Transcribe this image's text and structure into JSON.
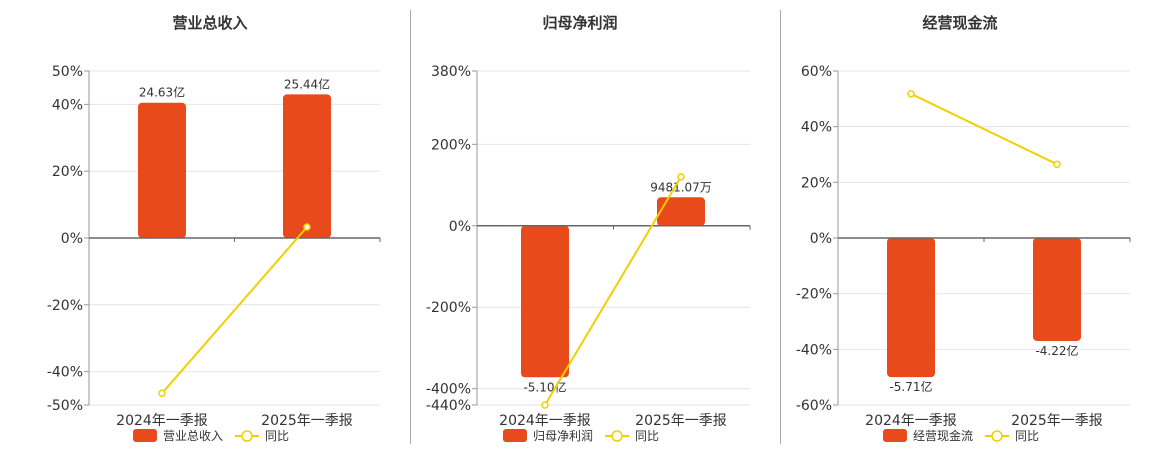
{
  "legend_labels": {
    "yoy": "同比"
  },
  "colors": {
    "bar": "#e84a1c",
    "line": "#f0d000",
    "marker_fill": "#ffffff"
  },
  "chart_data": [
    {
      "type": "bar",
      "title": "营业总收入",
      "categories": [
        "2024年一季报",
        "2025年一季报"
      ],
      "series": [
        {
          "name": "营业总收入",
          "type": "bar",
          "values": [
            40.5,
            43.0
          ],
          "labels": [
            "24.63亿",
            "25.44亿"
          ]
        },
        {
          "name": "同比",
          "type": "line",
          "values": [
            -46.5,
            3.3
          ]
        }
      ],
      "yticks": [
        50,
        40,
        20,
        0,
        -20,
        -40,
        -50
      ],
      "ylim": [
        -50,
        50
      ],
      "yunit": "%",
      "grid": true,
      "legend": "bottom"
    },
    {
      "type": "bar",
      "title": "归母净利润",
      "categories": [
        "2024年一季报",
        "2025年一季报"
      ],
      "series": [
        {
          "name": "归母净利润",
          "type": "bar",
          "values": [
            -372,
            70
          ],
          "labels": [
            "-5.10亿",
            "9481.07万"
          ]
        },
        {
          "name": "同比",
          "type": "line",
          "values": [
            -440,
            120
          ]
        }
      ],
      "yticks": [
        380,
        200,
        0,
        -200,
        -400,
        -440
      ],
      "ylim": [
        -440,
        380
      ],
      "yunit": "%",
      "grid": true,
      "legend": "bottom"
    },
    {
      "type": "bar",
      "title": "经营现金流",
      "categories": [
        "2024年一季报",
        "2025年一季报"
      ],
      "series": [
        {
          "name": "经营现金流",
          "type": "bar",
          "values": [
            -50,
            -37
          ],
          "labels": [
            "-5.71亿",
            "-4.22亿"
          ]
        },
        {
          "name": "同比",
          "type": "line",
          "values": [
            51.8,
            26.5
          ]
        }
      ],
      "yticks": [
        60,
        40,
        20,
        0,
        -20,
        -40,
        -60
      ],
      "ylim": [
        -60,
        60
      ],
      "yunit": "%",
      "grid": true,
      "legend": "bottom"
    }
  ]
}
